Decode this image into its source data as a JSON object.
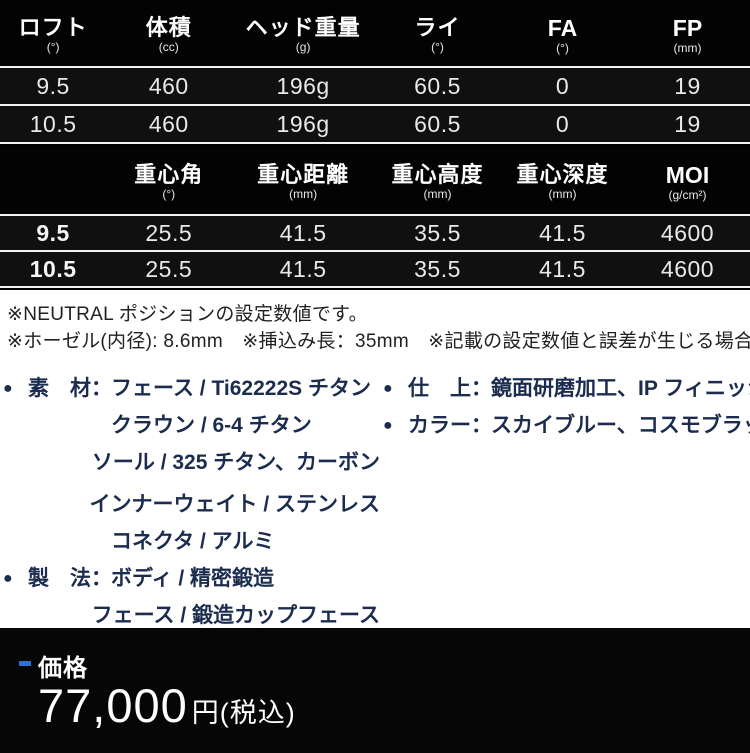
{
  "spec_table_basic": {
    "headers": [
      {
        "label": "ロフト",
        "unit": "(°)"
      },
      {
        "label": "体積",
        "unit": "(cc)"
      },
      {
        "label": "ヘッド重量",
        "unit": "(g)"
      },
      {
        "label": "ライ",
        "unit": "(°)"
      },
      {
        "label": "FA",
        "unit": "(°)"
      },
      {
        "label": "FP",
        "unit": "(mm)"
      }
    ],
    "rows": [
      [
        "9.5",
        "460",
        "196g",
        "60.5",
        "0",
        "19"
      ],
      [
        "10.5",
        "460",
        "196g",
        "60.5",
        "0",
        "19"
      ]
    ]
  },
  "spec_table_cg": {
    "headers": [
      {
        "label": "",
        "unit": ""
      },
      {
        "label": "重心角",
        "unit": "(°)"
      },
      {
        "label": "重心距離",
        "unit": "(mm)"
      },
      {
        "label": "重心高度",
        "unit": "(mm)"
      },
      {
        "label": "重心深度",
        "unit": "(mm)"
      },
      {
        "label": "MOI",
        "unit": "(g/cm²)"
      }
    ],
    "rows": [
      [
        "9.5",
        "25.5",
        "41.5",
        "35.5",
        "41.5",
        "4600"
      ],
      [
        "10.5",
        "25.5",
        "41.5",
        "35.5",
        "41.5",
        "4600"
      ]
    ]
  },
  "notes": {
    "line1": "※NEUTRAL ポジションの設定数値です。",
    "line2": "※ホーゼル(内径): 8.6mm　※挿込み長：35mm　※記載の設定数値と誤差が生じる場合があります。"
  },
  "details": {
    "left": [
      {
        "bullet": "●",
        "label": "素　材：",
        "text": "フェース / Ti62222S チタン"
      },
      {
        "bullet": "",
        "label": "",
        "text": "クラウン / 6-4 チタン"
      },
      {
        "bullet": "",
        "label": "",
        "text": "ソール / 325 チタン、カーボン"
      },
      {
        "bullet": "",
        "label": "",
        "text": "インナーウェイト / ステンレス"
      },
      {
        "bullet": "",
        "label": "",
        "text": "コネクタ / アルミ"
      },
      {
        "bullet": "●",
        "label": "製　法：",
        "text": "ボディ / 精密鍛造"
      },
      {
        "bullet": "",
        "label": "",
        "text": "フェース / 鍛造カップフェース"
      }
    ],
    "right": [
      {
        "bullet": "●",
        "label": "仕　上：",
        "text": "鏡面研磨加工、IP フィニッシュ"
      },
      {
        "bullet": "●",
        "label": "カラー：",
        "text": "スカイブルー、コスモブラック"
      }
    ]
  },
  "price": {
    "label": "価格",
    "amount": "77,000",
    "suffix": "円(税込)"
  },
  "colors": {
    "table_background": "#000000",
    "detail_text_navy": "#1b2c4e",
    "price_accent_blue": "#2e71cb"
  }
}
